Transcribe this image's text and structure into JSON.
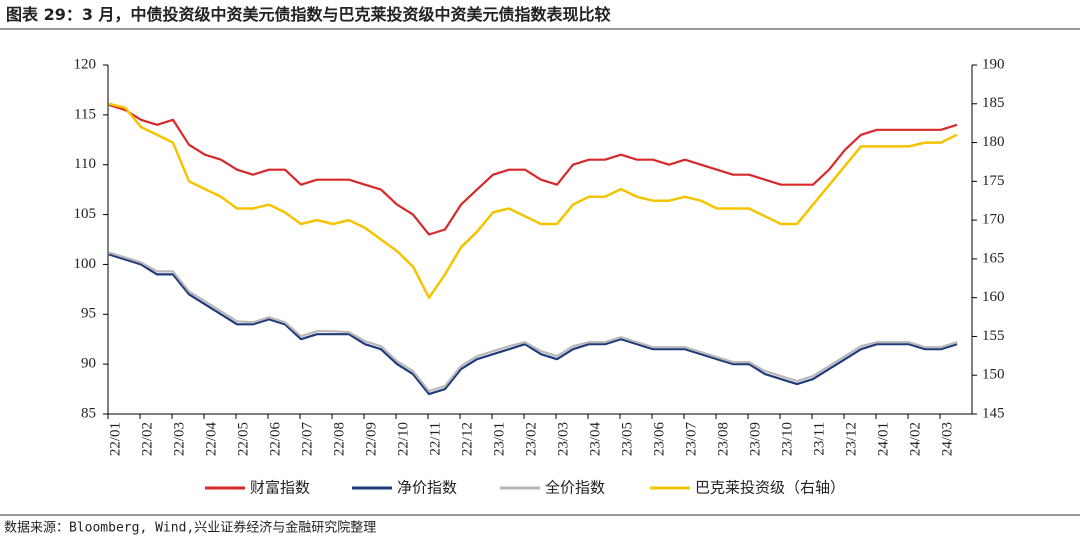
{
  "chart_data": {
    "type": "line",
    "title": "图表 29：3 月，中债投资级中资美元债指数与巴克莱投资级中资美元债指数表现比较",
    "source": "数据来源：Bloomberg, Wind,兴业证券经济与金融研究院整理",
    "categories": [
      "22/01",
      null,
      "22/02",
      null,
      "22/03",
      null,
      "22/04",
      null,
      "22/05",
      null,
      "22/06",
      null,
      "22/07",
      null,
      "22/08",
      null,
      "22/09",
      null,
      "22/10",
      null,
      "22/11",
      null,
      "22/12",
      null,
      "23/01",
      null,
      "23/02",
      null,
      "23/03",
      null,
      "23/04",
      null,
      "23/05",
      null,
      "23/06",
      null,
      "23/07",
      null,
      "23/08",
      null,
      "23/09",
      null,
      "23/10",
      null,
      "23/11",
      null,
      "23/12",
      null,
      "24/01",
      null,
      "24/02",
      null,
      "24/03",
      null
    ],
    "ylim": [
      85,
      120
    ],
    "yticks": [
      85,
      90,
      95,
      100,
      105,
      110,
      115,
      120
    ],
    "y2lim": [
      145,
      190
    ],
    "y2ticks": [
      145,
      150,
      155,
      160,
      165,
      170,
      175,
      180,
      185,
      190
    ],
    "grid": false,
    "series": [
      {
        "name": "财富指数",
        "color": "#d7282a",
        "values": [
          116,
          115.5,
          114.5,
          114,
          114.5,
          112,
          111,
          110.5,
          109.5,
          109,
          109.5,
          109.5,
          108,
          108.5,
          108.5,
          108.5,
          108,
          107.5,
          106,
          105,
          103,
          103.5,
          106,
          107.5,
          109,
          109.5,
          109.5,
          108.5,
          108,
          110,
          110.5,
          110.5,
          111,
          110.5,
          110.5,
          110,
          110.5,
          110,
          109.5,
          109,
          109,
          108.5,
          108,
          108,
          108,
          109.5,
          111.5,
          113,
          113.5,
          113.5,
          113.5,
          113.5,
          113.5,
          114
        ]
      },
      {
        "name": "净价指数",
        "color": "#1f3a7a",
        "values": [
          101,
          100.5,
          100,
          99,
          99,
          97,
          96,
          95,
          94,
          94,
          94.5,
          94,
          92.5,
          93,
          93,
          93,
          92,
          91.5,
          90,
          89,
          87,
          87.5,
          89.5,
          90.5,
          91,
          91.5,
          92,
          91,
          90.5,
          91.5,
          92,
          92,
          92.5,
          92,
          91.5,
          91.5,
          91.5,
          91,
          90.5,
          90,
          90,
          89,
          88.5,
          88,
          88.5,
          89.5,
          90.5,
          91.5,
          92,
          92,
          92,
          91.5,
          91.5,
          92
        ]
      },
      {
        "name": "全价指数",
        "color": "#b8b8b8",
        "values": [
          101.2,
          100.7,
          100.2,
          99.3,
          99.3,
          97.3,
          96.3,
          95.3,
          94.3,
          94.2,
          94.7,
          94.2,
          92.8,
          93.3,
          93.3,
          93.2,
          92.3,
          91.8,
          90.3,
          89.3,
          87.3,
          87.8,
          89.8,
          90.8,
          91.3,
          91.8,
          92.2,
          91.3,
          90.8,
          91.8,
          92.2,
          92.2,
          92.7,
          92.2,
          91.7,
          91.7,
          91.7,
          91.2,
          90.7,
          90.2,
          90.2,
          89.3,
          88.8,
          88.3,
          88.8,
          89.8,
          90.8,
          91.8,
          92.2,
          92.2,
          92.2,
          91.7,
          91.7,
          92.2
        ]
      },
      {
        "name": "巴克莱投资级（右轴）",
        "color": "#f5c400",
        "axis": "y2",
        "values": [
          185,
          184.5,
          182,
          181,
          180,
          175,
          174,
          173,
          171.5,
          171.5,
          172,
          171,
          169.5,
          170,
          169.5,
          170,
          169,
          167.5,
          166,
          164,
          160,
          163,
          166.5,
          168.5,
          171,
          171.5,
          170.5,
          169.5,
          169.5,
          172,
          173,
          173,
          174,
          173,
          172.5,
          172.5,
          173,
          172.5,
          171.5,
          171.5,
          171.5,
          170.5,
          169.5,
          169.5,
          172,
          174.5,
          177,
          179.5,
          179.5,
          179.5,
          179.5,
          180,
          180,
          181
        ]
      }
    ]
  }
}
